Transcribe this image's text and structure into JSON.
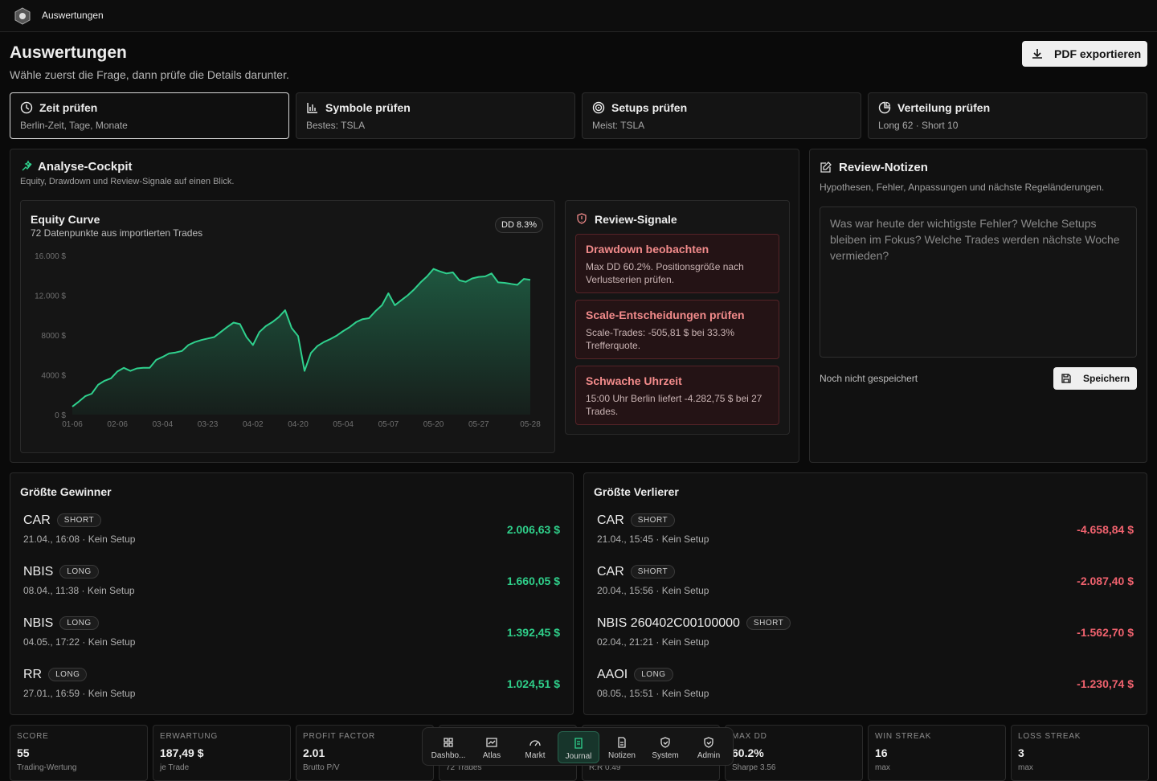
{
  "header": {
    "app_title": "Auswertungen"
  },
  "page": {
    "title": "Auswertungen",
    "subtitle": "Wähle zuerst die Frage, dann prüfe die Details darunter.",
    "export_button": "PDF exportieren"
  },
  "tabs": [
    {
      "title": "Zeit prüfen",
      "sub": "Berlin-Zeit, Tage, Monate"
    },
    {
      "title": "Symbole prüfen",
      "sub": "Bestes: TSLA"
    },
    {
      "title": "Setups prüfen",
      "sub": "Meist: TSLA"
    },
    {
      "title": "Verteilung prüfen",
      "sub": "Long 62 · Short 10"
    }
  ],
  "cockpit": {
    "title": "Analyse-Cockpit",
    "subtitle": "Equity, Drawdown und Review-Signale auf einen Blick."
  },
  "chart_data": {
    "type": "line",
    "title": "Equity Curve",
    "subtitle": "72 Datenpunkte aus importierten Trades",
    "badge": "DD 8.3%",
    "color": "#2fd08d",
    "values": [
      800,
      1300,
      1850,
      2100,
      3000,
      3400,
      3650,
      4350,
      4700,
      4400,
      4650,
      4700,
      4700,
      5500,
      5800,
      6150,
      6250,
      6400,
      7000,
      7300,
      7500,
      7650,
      7800,
      8300,
      8800,
      9250,
      9100,
      7800,
      7000,
      8300,
      8900,
      9300,
      9800,
      10500,
      8700,
      7900,
      4400,
      6200,
      6900,
      7300,
      7600,
      7950,
      8400,
      8800,
      9300,
      9600,
      9700,
      10400,
      11000,
      12200,
      11000,
      11500,
      12000,
      12600,
      13300,
      13900,
      14650,
      14400,
      14200,
      14300,
      13500,
      13350,
      13700,
      13850,
      13900,
      14200,
      13300,
      13250,
      13150,
      13050,
      13650,
      13550
    ],
    "xlim": [
      0,
      71
    ],
    "xticks": [
      {
        "value": 0,
        "label": "01-06"
      },
      {
        "value": 7,
        "label": "02-06"
      },
      {
        "value": 14,
        "label": "03-04"
      },
      {
        "value": 21,
        "label": "03-23"
      },
      {
        "value": 28,
        "label": "04-02"
      },
      {
        "value": 35,
        "label": "04-20"
      },
      {
        "value": 42,
        "label": "05-04"
      },
      {
        "value": 49,
        "label": "05-07"
      },
      {
        "value": 56,
        "label": "05-20"
      },
      {
        "value": 63,
        "label": "05-27"
      },
      {
        "value": 71,
        "label": "05-28"
      }
    ],
    "ylim": [
      0,
      16000
    ],
    "yticks": [
      {
        "value": 0,
        "label": "0 $"
      },
      {
        "value": 4000,
        "label": "4000 $"
      },
      {
        "value": 8000,
        "label": "8000 $"
      },
      {
        "value": 12000,
        "label": "12.000 $"
      },
      {
        "value": 16000,
        "label": "16.000 $"
      }
    ]
  },
  "signals": {
    "title": "Review-Signale",
    "items": [
      {
        "title": "Drawdown beobachten",
        "text": "Max DD 60.2%. Positionsgröße nach Verlustserien prüfen."
      },
      {
        "title": "Scale-Entscheidungen prüfen",
        "text": "Scale-Trades: -505,81 $ bei 33.3% Trefferquote."
      },
      {
        "title": "Schwache Uhrzeit",
        "text": "15:00 Uhr Berlin liefert -4.282,75 $ bei 27 Trades."
      }
    ]
  },
  "notes": {
    "title": "Review-Notizen",
    "subtitle": "Hypothesen, Fehler, Anpassungen und nächste Regeländerungen.",
    "placeholder": "Was war heute der wichtigste Fehler? Welche Setups bleiben im Fokus? Welche Trades werden nächste Woche vermieden?",
    "status": "Noch nicht gespeichert",
    "save_button": "Speichern"
  },
  "winners": {
    "title": "Größte Gewinner",
    "rows": [
      {
        "symbol": "CAR",
        "side": "SHORT",
        "meta": "21.04., 16:08 · Kein Setup",
        "amount": "2.006,63 $"
      },
      {
        "symbol": "NBIS",
        "side": "LONG",
        "meta": "08.04., 11:38 · Kein Setup",
        "amount": "1.660,05 $"
      },
      {
        "symbol": "NBIS",
        "side": "LONG",
        "meta": "04.05., 17:22 · Kein Setup",
        "amount": "1.392,45 $"
      },
      {
        "symbol": "RR",
        "side": "LONG",
        "meta": "27.01., 16:59 · Kein Setup",
        "amount": "1.024,51 $"
      }
    ]
  },
  "losers": {
    "title": "Größte Verlierer",
    "rows": [
      {
        "symbol": "CAR",
        "side": "SHORT",
        "meta": "21.04., 15:45 · Kein Setup",
        "amount": "-4.658,84 $"
      },
      {
        "symbol": "CAR",
        "side": "SHORT",
        "meta": "20.04., 15:56 · Kein Setup",
        "amount": "-2.087,40 $"
      },
      {
        "symbol": "NBIS 260402C00100000",
        "side": "SHORT",
        "meta": "02.04., 21:21 · Kein Setup",
        "amount": "-1.562,70 $"
      },
      {
        "symbol": "AAOI",
        "side": "LONG",
        "meta": "08.05., 15:51 · Kein Setup",
        "amount": "-1.230,74 $"
      }
    ]
  },
  "stats": [
    {
      "label": "SCORE",
      "value": "55",
      "sub": "Trading-Wertung"
    },
    {
      "label": "ERWARTUNG",
      "value": "187,49 $",
      "sub": "je Trade"
    },
    {
      "label": "PROFIT FACTOR",
      "value": "2.01",
      "sub": "Brutto P/V"
    },
    {
      "sub": "72 Trades"
    },
    {
      "sub": "R:R 0.49"
    },
    {
      "label": "MAX DD",
      "value": "60.2%",
      "sub": "Sharpe 3.56"
    },
    {
      "label": "WIN STREAK",
      "value": "16",
      "sub": "max"
    },
    {
      "label": "LOSS STREAK",
      "value": "3",
      "sub": "max"
    }
  ],
  "nav": [
    "Dashbo...",
    "Atlas",
    "Markt",
    "Journal",
    "Notizen",
    "System",
    "Admin"
  ]
}
